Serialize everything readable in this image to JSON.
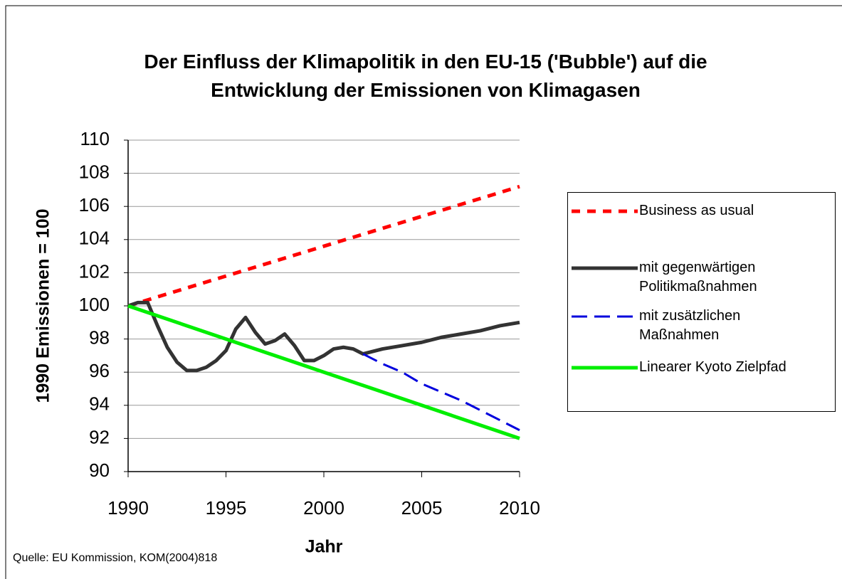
{
  "chart_data": {
    "type": "line",
    "title": "Der Einfluss der Klimapolitik in den EU-15 ('Bubble') auf die Entwicklung der Emissionen von Klimagasen",
    "xlabel": "Jahr",
    "ylabel": "1990 Emissionen = 100",
    "source": "Quelle: EU Kommission, KOM(2004)818",
    "xlim": [
      1990,
      2010
    ],
    "xticks": [
      1990,
      1995,
      2000,
      2005,
      2010
    ],
    "ylim": [
      90,
      110
    ],
    "yticks": [
      90,
      92,
      94,
      96,
      98,
      100,
      102,
      104,
      106,
      108,
      110
    ],
    "grid": true,
    "legend": "right",
    "series": [
      {
        "name": "Business as usual",
        "color": "#ff0000",
        "dash": "dotted",
        "x": [
          1990,
          2010
        ],
        "values": [
          100,
          107.2
        ]
      },
      {
        "name": "mit gegenwärtigen\nPolitikmaßnahmen",
        "color": "#333333",
        "dash": "solid",
        "x": [
          1990,
          1990.5,
          1991,
          1991.5,
          1992,
          1992.5,
          1993,
          1993.5,
          1994,
          1994.5,
          1995,
          1995.5,
          1996,
          1996.5,
          1997,
          1997.5,
          1998,
          1998.5,
          1999,
          1999.5,
          2000,
          2000.5,
          2001,
          2001.5,
          2002,
          2003,
          2004,
          2005,
          2006,
          2007,
          2008,
          2009,
          2010
        ],
        "values": [
          100,
          100.2,
          100.2,
          98.8,
          97.5,
          96.6,
          96.1,
          96.1,
          96.3,
          96.7,
          97.3,
          98.6,
          99.3,
          98.4,
          97.7,
          97.9,
          98.3,
          97.6,
          96.7,
          96.7,
          97.0,
          97.4,
          97.5,
          97.4,
          97.1,
          97.4,
          97.6,
          97.8,
          98.1,
          98.3,
          98.5,
          98.8,
          99.0
        ]
      },
      {
        "name": "mit zusätzlichen\nMaßnahmen",
        "color": "#0000dd",
        "dash": "dashed",
        "x": [
          2002,
          2003,
          2004,
          2005,
          2006,
          2007,
          2008,
          2009,
          2010
        ],
        "values": [
          97.1,
          96.5,
          96.0,
          95.3,
          94.8,
          94.3,
          93.7,
          93.1,
          92.5
        ]
      },
      {
        "name": "Linearer Kyoto Zielpfad",
        "color": "#00ee00",
        "dash": "solid",
        "x": [
          1990,
          1995,
          2000,
          2005,
          2010
        ],
        "values": [
          100,
          98,
          96,
          94,
          92
        ]
      }
    ]
  }
}
